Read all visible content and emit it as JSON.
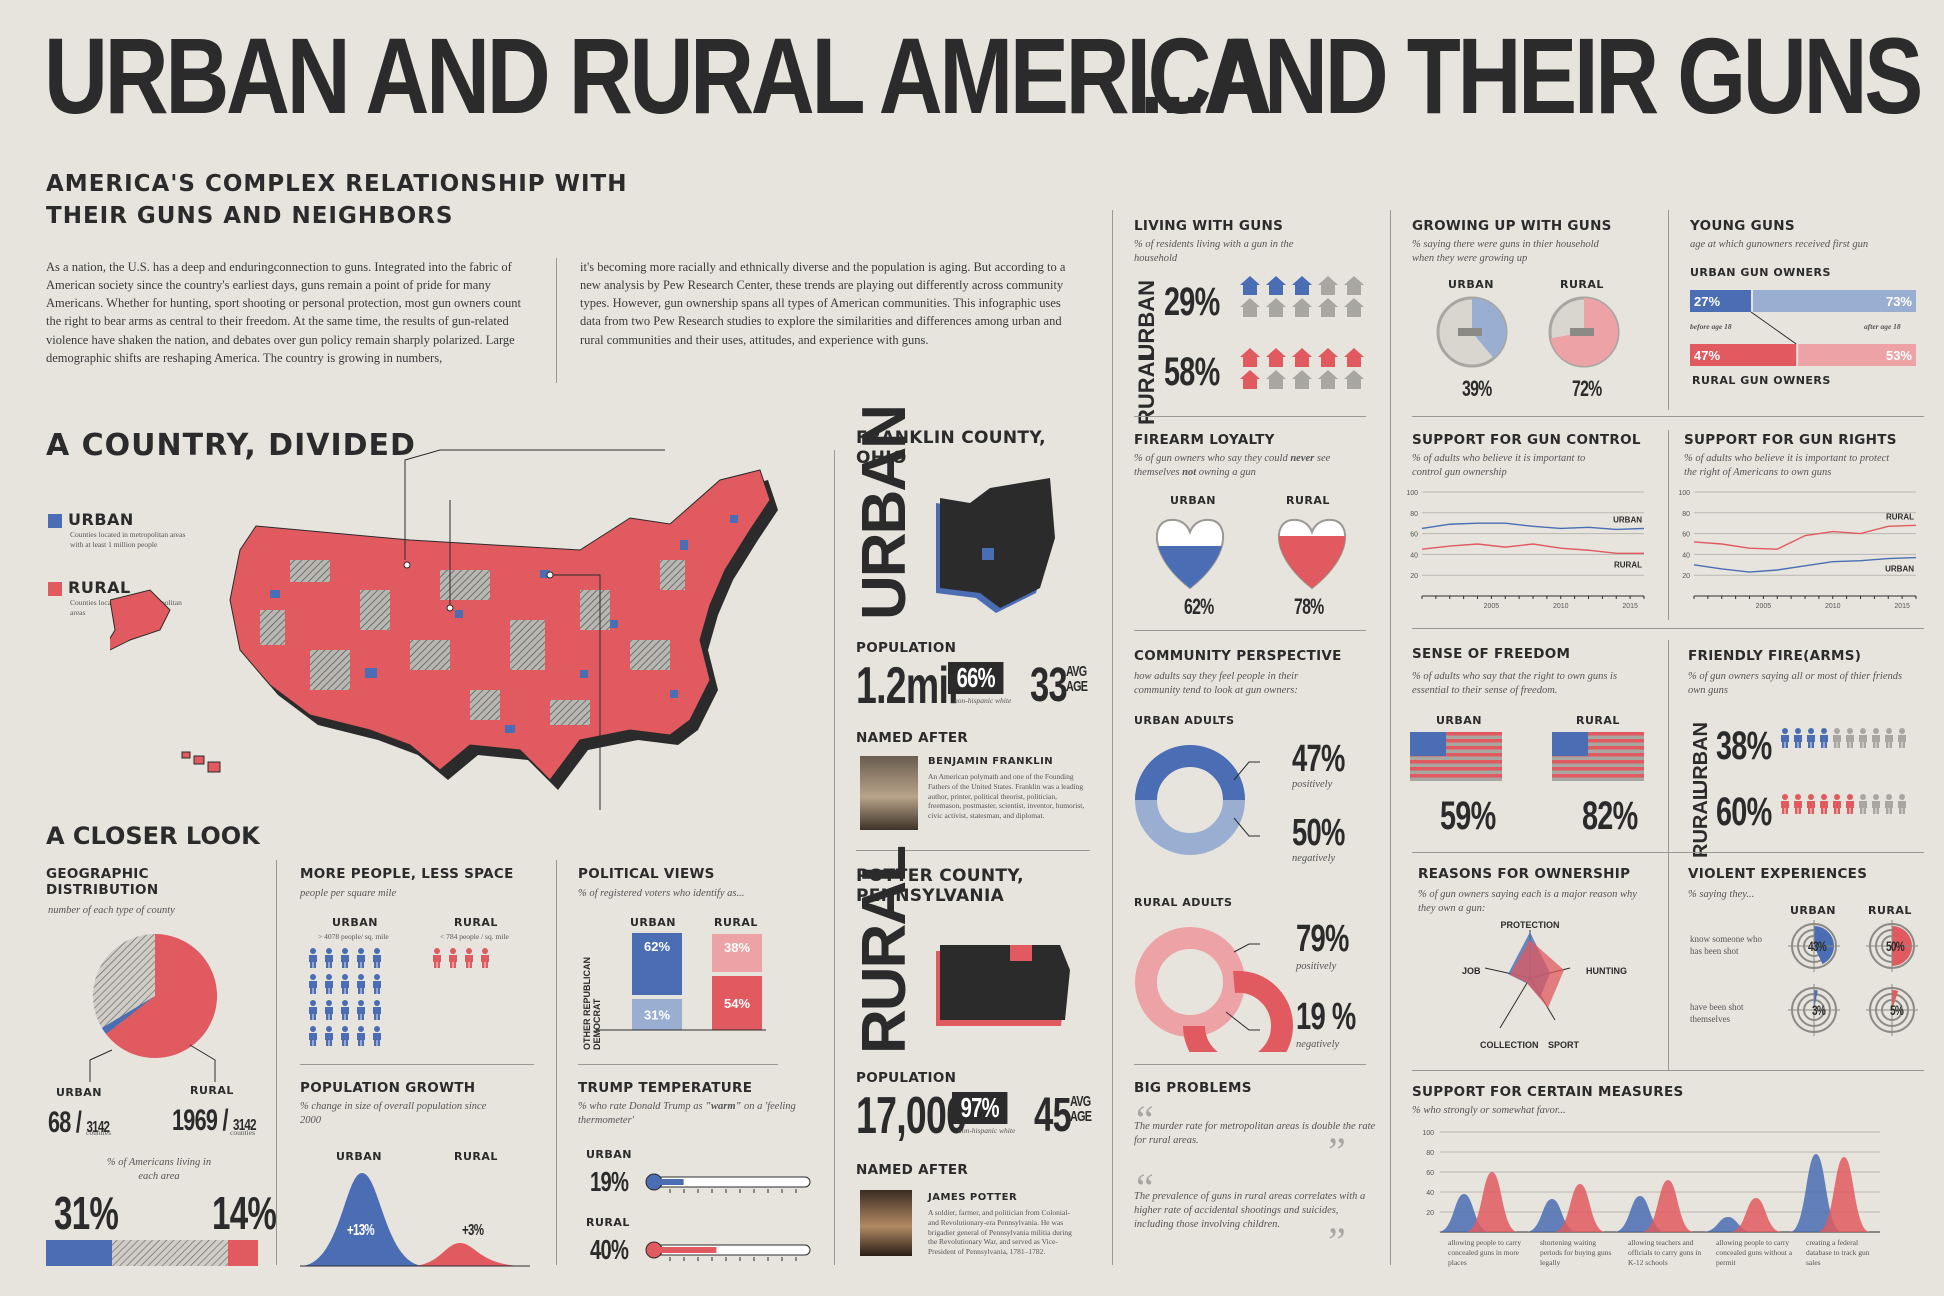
{
  "title_left": "URBAN AND RURAL AMERICA",
  "title_right": "...AND THEIR GUNS",
  "subtitle": "AMERICA'S COMPLEX RELATIONSHIP WITH\nTHEIR GUNS AND NEIGHBORS",
  "intro": {
    "col1": "As a nation, the U.S. has a deep and enduringconnection to guns. Integrated into the fabric of American society since the country's earliest days, guns remain a point of pride for many Americans. Whether for hunting, sport shooting or personal protection, most gun owners count the right to bear arms as central to their freedom. At the same time, the results of gun-related violence have shaken the nation, and debates over gun policy remain sharply polarized. Large demographic shifts are reshaping America. The country is growing in numbers,",
    "col2": "it's becoming more racially and ethnically diverse and the population is aging. But according to a new analysis by Pew Research Center, these trends are playing out differently across community types. However, gun ownership spans all types of American communities. This infographic uses data from two Pew Research studies to explore the similarities and differences among urban and rural communities and their uses, attitudes, and experience with guns."
  },
  "colors": {
    "urban": "#4a6db3",
    "rural": "#e05a5f",
    "light_urban": "#9aaed2",
    "light_rural": "#eda3a6",
    "ink": "#2b2b2b",
    "bg": "#e6e4dd"
  },
  "divided": {
    "heading": "A COUNTRY, DIVIDED",
    "urban_label": "URBAN",
    "urban_note": "Counties located in metropolitan areas with at least 1 million people",
    "rural_label": "RURAL",
    "rural_note": "Counties located in non-metropolitan areas"
  },
  "closer_look": "A CLOSER LOOK",
  "geo": {
    "title": "GEOGRAPHIC DISTRIBUTION",
    "sub": "number of each type of county",
    "urban_label": "URBAN",
    "rural_label": "RURAL",
    "urban_count": "68",
    "rural_count": "1969",
    "total": "3142",
    "counties": "counties",
    "pct_note": "% of Americans living in each area",
    "urban_pct": "31%",
    "rural_pct": "14%"
  },
  "density": {
    "title": "MORE PEOPLE, LESS SPACE",
    "sub": "people per square mile",
    "urban_label": "URBAN",
    "urban_note": "> 4078 people/ sq. mile",
    "rural_label": "RURAL",
    "rural_note": "< 784 people / sq. mile"
  },
  "growth": {
    "title": "POPULATION GROWTH",
    "sub": "% change in size of overall population since 2000",
    "urban_label": "URBAN",
    "rural_label": "RURAL",
    "urban_val": "+13%",
    "rural_val": "+3%"
  },
  "political": {
    "title": "POLITICAL VIEWS",
    "sub": "% of registered voters who identify as...",
    "urban_label": "URBAN",
    "rural_label": "RURAL",
    "axis_dem": "DEMOCRAT",
    "axis_rep": "REPUBLICAN",
    "axis_other": "OTHER",
    "urban_dem": "62%",
    "urban_rep": "31%",
    "rural_dem": "38%",
    "rural_rep": "54%"
  },
  "trump": {
    "title": "TRUMP TEMPERATURE",
    "sub_pre": "% who rate Donald Trump as ",
    "sub_bold": "\"warm\"",
    "sub_post": " on a 'feeling thermometer'",
    "urban_label": "URBAN",
    "urban_val": "19%",
    "urban_fill": 0.19,
    "rural_label": "RURAL",
    "rural_val": "40%",
    "rural_fill": 0.4
  },
  "franklin": {
    "title": "FRANKLIN COUNTY, OHIO",
    "type": "URBAN",
    "pop_label": "POPULATION",
    "pop": "1.2mil",
    "white": "66%",
    "white_note": "non-hispanic white",
    "age": "33",
    "avg": "AVG",
    "age_lbl": "AGE",
    "named_after": "NAMED AFTER",
    "person": "BENJAMIN FRANKLIN",
    "bio": "An American polymath and one of the Founding Fathers of the United States. Franklin was a leading author, printer, political theorist, politician, freemason, postmaster, scientist, inventor, humorist, civic activist, statesman, and diplomat."
  },
  "potter": {
    "title": "POTTER COUNTY, PENNSYLVANIA",
    "type": "RURAL",
    "pop_label": "POPULATION",
    "pop": "17,000",
    "white": "97%",
    "white_note": "non-hispanic white",
    "age": "45",
    "avg": "AVG",
    "age_lbl": "AGE",
    "named_after": "NAMED AFTER",
    "person": "JAMES POTTER",
    "bio": "A soldier, farmer, and politician from Colonial- and Revolutionary-era Pennsylvania. He was brigadier general of Pennsylvania militia during the Revolutionary War, and served as Vice-President of Pennsylvania, 1781–1782."
  },
  "living": {
    "title": "LIVING WITH GUNS",
    "sub": "% of residents living with a gun in the household",
    "urban_label": "URBAN",
    "urban_val": "29%",
    "rural_label": "RURAL",
    "rural_val": "58%"
  },
  "growing": {
    "title": "GROWING UP WITH GUNS",
    "sub": "% saying there were guns in thier household when they were growing up",
    "urban_label": "URBAN",
    "urban_val": "39%",
    "rural_label": "RURAL",
    "rural_val": "72%"
  },
  "young": {
    "title": "YOUNG GUNS",
    "sub": "age at which gunowners received first gun",
    "urban_owners": "URBAN GUN OWNERS",
    "rural_owners": "RURAL GUN OWNERS",
    "urban_before": "27%",
    "urban_after": "73%",
    "rural_before": "47%",
    "rural_after": "53%",
    "before": "before age 18",
    "after": "after age 18"
  },
  "loyalty": {
    "title": "FIREARM LOYALTY",
    "sub_pre": "% of gun owners who say they could ",
    "sub_b1": "never",
    "sub_mid": " see themselves ",
    "sub_b2": "not",
    "sub_post": " owning a gun",
    "urban_label": "URBAN",
    "urban_val": "62%",
    "rural_label": "RURAL",
    "rural_val": "78%"
  },
  "community": {
    "title": "COMMUNITY PERSPECTIVE",
    "sub": "how adults say they feel people in their community tend to look at gun owners:",
    "urban_adults": "URBAN ADULTS",
    "urban_pos": "47%",
    "urban_neg": "50%",
    "rural_adults": "RURAL ADULTS",
    "rural_pos": "79%",
    "rural_neg": "19 %",
    "positively": "positively",
    "negatively": "negatively"
  },
  "big": {
    "title": "BIG PROBLEMS",
    "q1": "The murder rate for metropolitan areas is double the rate for rural areas.",
    "q2": "The prevalence of guns in rural areas correlates with a higher rate of accidental shootings and suicides, including those involving children."
  },
  "control": {
    "title": "SUPPORT FOR GUN CONTROL",
    "sub": "% of adults who believe it is important to control gun ownership",
    "urban_label": "URBAN",
    "rural_label": "RURAL"
  },
  "rights": {
    "title": "SUPPORT FOR GUN RIGHTS",
    "sub": "% of adults who believe it is important to protect the right of Americans to own guns",
    "urban_label": "URBAN",
    "rural_label": "RURAL"
  },
  "freedom": {
    "title": "SENSE OF FREEDOM",
    "sub": "% of adults who say that the right to own guns is essential to their sense of freedom.",
    "urban_label": "URBAN",
    "urban_val": "59%",
    "rural_label": "RURAL",
    "rural_val": "82%"
  },
  "friendly": {
    "title": "FRIENDLY FIRE(ARMS)",
    "sub": "% of gun owners saying all or most of thier friends own guns",
    "urban_label": "URBAN",
    "urban_val": "38%",
    "rural_label": "RURAL",
    "rural_val": "60%"
  },
  "reasons": {
    "title": "REASONS FOR OWNERSHIP",
    "sub": "% of gun owners saying each is a major reason why they own a gun:",
    "axes": [
      "PROTECTION",
      "HUNTING",
      "SPORT",
      "COLLECTION",
      "JOB"
    ]
  },
  "violent": {
    "title": "VIOLENT EXPERIENCES",
    "sub": "% saying they...",
    "urban_label": "URBAN",
    "rural_label": "RURAL",
    "row1": "know someone who has been shot",
    "row1_urban": "43%",
    "row1_rural": "50%",
    "row2": "have been shot themselves",
    "row2_urban": "3%",
    "row2_rural": "5%"
  },
  "measures": {
    "title": "SUPPORT FOR CERTAIN MEASURES",
    "sub": "% who strongly or somewhat favor...",
    "labels": [
      "allowing people to carry concealed guns in more places",
      "shortening waiting periods for buying guns legally",
      "allowing teachers and officials to carry guns in K-12 schools",
      "allowing people to carry concealed guns without a permit",
      "creating a federal database to track gun sales"
    ]
  },
  "chart_data": [
    {
      "type": "line",
      "title": "SUPPORT FOR GUN CONTROL",
      "x": [
        2000,
        2002,
        2004,
        2006,
        2008,
        2010,
        2012,
        2014,
        2016
      ],
      "ylim": [
        0,
        100
      ],
      "x_ticks": [
        "2005",
        "2010",
        "2015"
      ],
      "y_ticks": [
        20,
        40,
        60,
        80,
        100
      ],
      "series": [
        {
          "name": "URBAN",
          "values": [
            65,
            69,
            70,
            70,
            67,
            65,
            66,
            64,
            65
          ]
        },
        {
          "name": "RURAL",
          "values": [
            45,
            48,
            50,
            47,
            50,
            46,
            44,
            41,
            41
          ]
        }
      ]
    },
    {
      "type": "line",
      "title": "SUPPORT FOR GUN RIGHTS",
      "x": [
        2000,
        2002,
        2004,
        2006,
        2008,
        2010,
        2012,
        2014,
        2016
      ],
      "ylim": [
        0,
        100
      ],
      "x_ticks": [
        "2005",
        "2010",
        "2015"
      ],
      "y_ticks": [
        20,
        40,
        60,
        80,
        100
      ],
      "series": [
        {
          "name": "RURAL",
          "values": [
            52,
            50,
            46,
            45,
            58,
            62,
            60,
            67,
            68
          ]
        },
        {
          "name": "URBAN",
          "values": [
            30,
            26,
            23,
            25,
            29,
            33,
            34,
            36,
            37
          ]
        }
      ]
    },
    {
      "type": "bar",
      "title": "LIVING WITH GUNS",
      "categories": [
        "URBAN",
        "RURAL"
      ],
      "values": [
        29,
        58
      ]
    },
    {
      "type": "pie",
      "title": "GROWING UP WITH GUNS",
      "categories": [
        "URBAN",
        "RURAL"
      ],
      "values": [
        39,
        72
      ]
    },
    {
      "type": "bar",
      "title": "YOUNG GUNS",
      "categories": [
        "URBAN",
        "RURAL"
      ],
      "series": [
        {
          "name": "before age 18",
          "values": [
            27,
            47
          ]
        },
        {
          "name": "after age 18",
          "values": [
            73,
            53
          ]
        }
      ]
    },
    {
      "type": "bar",
      "title": "POLITICAL VIEWS",
      "categories": [
        "URBAN",
        "RURAL"
      ],
      "series": [
        {
          "name": "DEMOCRAT",
          "values": [
            62,
            38
          ]
        },
        {
          "name": "REPUBLICAN",
          "values": [
            31,
            54
          ]
        }
      ]
    },
    {
      "type": "area",
      "title": "SUPPORT FOR CERTAIN MEASURES",
      "ylim": [
        0,
        100
      ],
      "y_ticks": [
        20,
        40,
        60,
        80,
        100
      ],
      "categories": [
        "allowing people to carry concealed guns in more places",
        "shortening waiting periods for buying guns legally",
        "allowing teachers and officials to carry guns in K-12 schools",
        "allowing people to carry concealed guns without a permit",
        "creating a federal database to track gun sales"
      ],
      "series": [
        {
          "name": "URBAN",
          "values": [
            38,
            33,
            36,
            15,
            78
          ]
        },
        {
          "name": "RURAL",
          "values": [
            60,
            48,
            52,
            34,
            75
          ]
        }
      ]
    }
  ]
}
